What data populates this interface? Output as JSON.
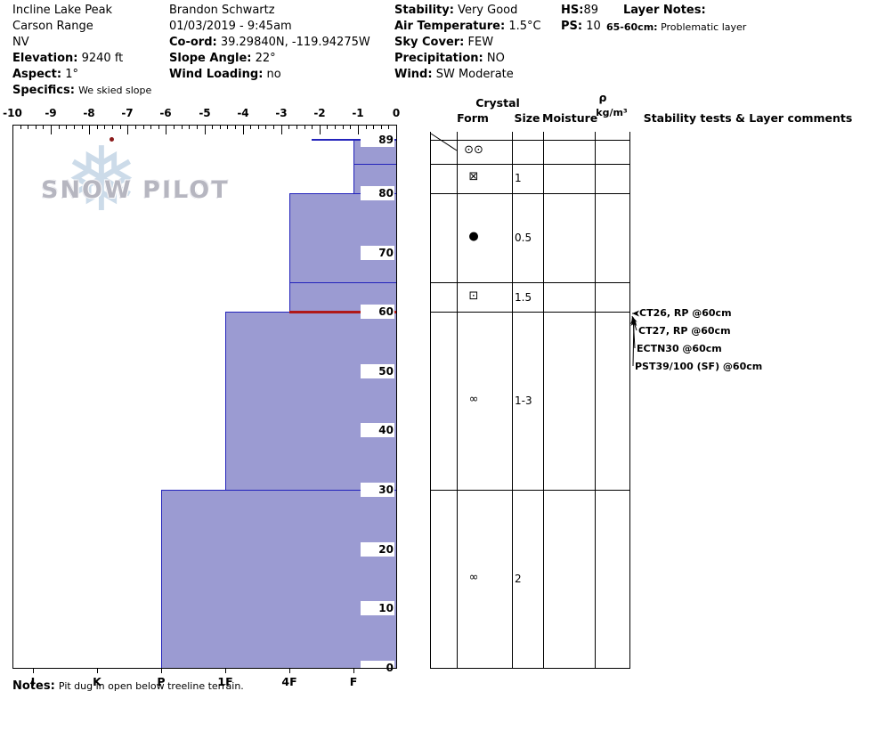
{
  "header": {
    "site": {
      "name": "Incline Lake Peak",
      "range": "Carson Range",
      "state": "NV",
      "elevation_label": "Elevation:",
      "elevation_value": "9240 ft",
      "aspect_label": "Aspect:",
      "aspect_value": "1°",
      "specifics_label": "Specifics:",
      "specifics_value": "We skied slope"
    },
    "observer": {
      "name": "Brandon Schwartz",
      "datetime": "01/03/2019 - 9:45am",
      "coord_label": "Co-ord:",
      "coord_value": "39.29840N, -119.94275W",
      "slope_angle_label": "Slope Angle:",
      "slope_angle_value": "22°",
      "wind_loading_label": "Wind Loading:",
      "wind_loading_value": "no"
    },
    "conditions": {
      "stability_label": "Stability:",
      "stability_value": "Very Good",
      "air_temp_label": "Air Temperature:",
      "air_temp_value": "1.5°C",
      "sky_label": "Sky Cover:",
      "sky_value": "FEW",
      "precip_label": "Precipitation:",
      "precip_value": "NO",
      "wind_label": "Wind:",
      "wind_value": "SW Moderate"
    },
    "totals": {
      "hs_label": "HS:",
      "hs_value": "89",
      "ps_label": "PS:",
      "ps_value": "10"
    },
    "layer_notes": {
      "title": "Layer Notes:",
      "entry_depth": "65-60cm:",
      "entry_text": "Problematic layer"
    }
  },
  "watermark": {
    "snowflake": "❅",
    "text": "SNOW PILOT"
  },
  "notes": {
    "label": "Notes:",
    "text": "Pit dug in open below treeline terrain."
  },
  "chart_data": {
    "type": "bar",
    "variant": "snow-pit-hardness-profile",
    "temperature_axis": {
      "min": -10,
      "max": 0,
      "major_ticks": [
        -10,
        -9,
        -8,
        -7,
        -6,
        -5,
        -4,
        -3,
        -2,
        -1,
        0
      ]
    },
    "hardness_axis": {
      "categories": [
        "I",
        "K",
        "P",
        "1F",
        "4F",
        "F"
      ]
    },
    "depth_axis": {
      "unit": "cm",
      "total_cm": 89,
      "ticks": [
        89,
        80,
        70,
        60,
        50,
        40,
        30,
        20,
        10,
        0
      ]
    },
    "temperature_points": [
      {
        "depth_cm": 89,
        "temp_c": -7.4
      }
    ],
    "surface_line": {
      "depth_cm": 89,
      "hardness": "4F+"
    },
    "layers": [
      {
        "top_cm": 89,
        "bottom_cm": 85,
        "hardness": "F",
        "form": "⊙⊙",
        "size_mm": ""
      },
      {
        "top_cm": 85,
        "bottom_cm": 80,
        "hardness": "F",
        "form": "⊠",
        "size_mm": "1"
      },
      {
        "top_cm": 80,
        "bottom_cm": 65,
        "hardness": "4F",
        "form": "●",
        "size_mm": "0.5"
      },
      {
        "top_cm": 65,
        "bottom_cm": 60,
        "hardness": "4F",
        "form": "⊡",
        "size_mm": "1.5",
        "problematic": true
      },
      {
        "top_cm": 60,
        "bottom_cm": 30,
        "hardness": "1F",
        "form": "∞",
        "size_mm": "1-3"
      },
      {
        "top_cm": 30,
        "bottom_cm": 0,
        "hardness": "P",
        "form": "∞",
        "size_mm": "2"
      }
    ],
    "panel_headers": {
      "crystal": "Crystal",
      "form": "Form",
      "size": "Size",
      "moisture": "Moisture",
      "rho": "ρ",
      "rho_units": "kg/m³",
      "comments": "Stability tests & Layer comments"
    },
    "stability_tests": [
      "CT26, RP @60cm",
      "CT27, RP @60cm",
      "ECTN30 @60cm",
      "PST39/100 (SF) @60cm"
    ],
    "colors": {
      "bar_fill": "#9b9bd2",
      "bar_border": "#2323bb",
      "problem_line": "#b01818",
      "temp_dot": "#8b1a1a"
    }
  }
}
